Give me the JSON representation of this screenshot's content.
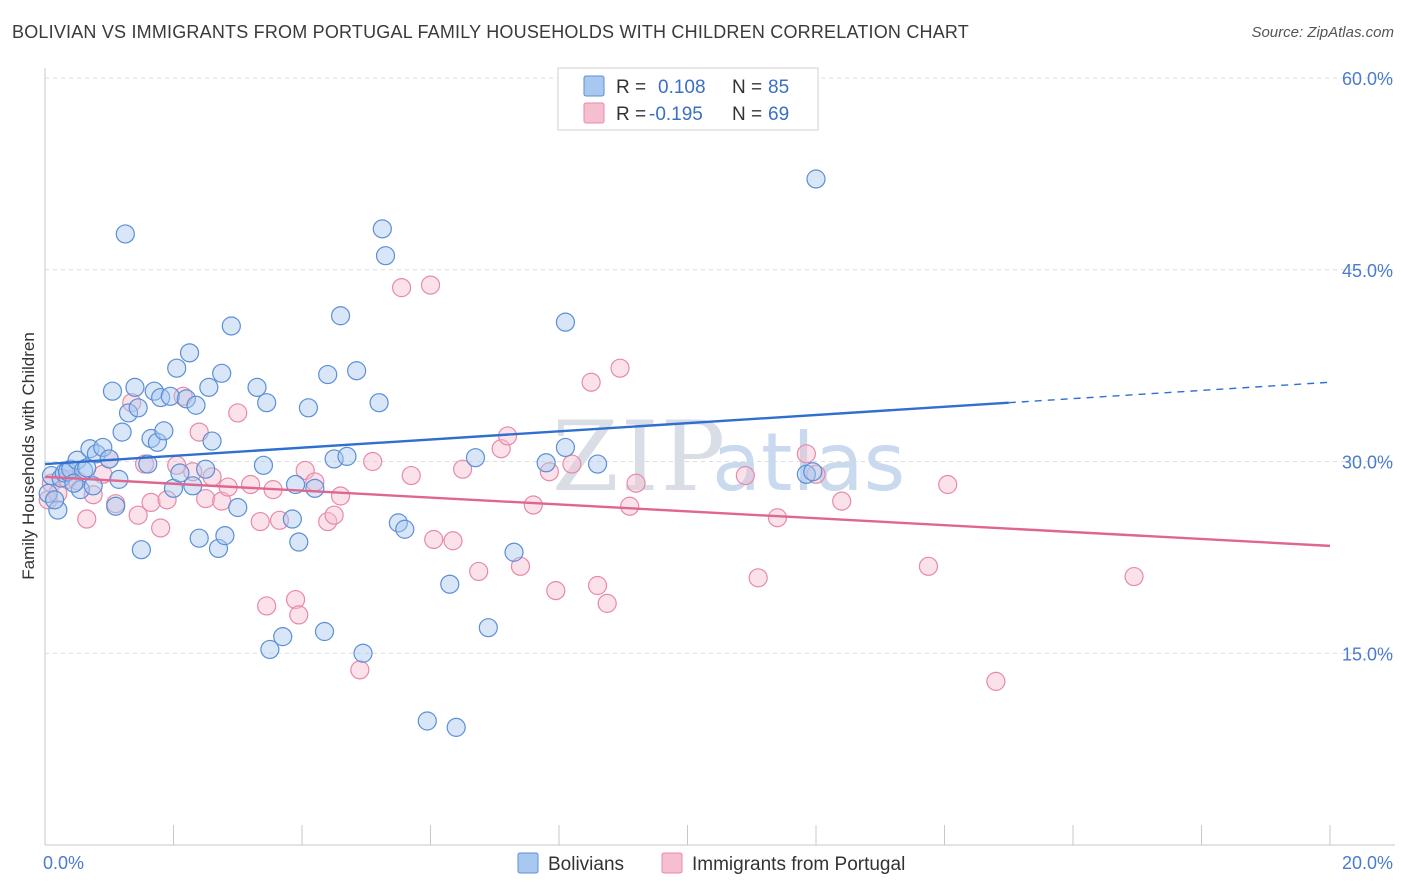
{
  "title": "BOLIVIAN VS IMMIGRANTS FROM PORTUGAL FAMILY HOUSEHOLDS WITH CHILDREN CORRELATION CHART",
  "source": "Source: ZipAtlas.com",
  "watermark": {
    "part1": "ZIP",
    "part2": "atlas"
  },
  "colors": {
    "blue_fill": "#a9c8f0",
    "blue_stroke": "#5b8fd6",
    "blue_line": "#2f6fd0",
    "pink_fill": "#f6bfd0",
    "pink_stroke": "#e68aa8",
    "pink_line": "#e0668f",
    "grid": "#dcdcdc",
    "tick_text": "#4a7bd0"
  },
  "legend": {
    "rows": [
      {
        "r_label": "R =",
        "r_value": "0.108",
        "n_label": "N =",
        "n_value": "85"
      },
      {
        "r_label": "R =",
        "r_value": "-0.195",
        "n_label": "N =",
        "n_value": "69"
      }
    ]
  },
  "bottom_legend": [
    "Bolivians",
    "Immigrants from Portugal"
  ],
  "chart_data": {
    "type": "scatter",
    "title": "BOLIVIAN VS IMMIGRANTS FROM PORTUGAL FAMILY HOUSEHOLDS WITH CHILDREN CORRELATION CHART",
    "xlabel": "",
    "ylabel": "Family Households with Children",
    "xlim": [
      0,
      20
    ],
    "ylim": [
      0,
      60
    ],
    "x_tick_labels": [
      "0.0%",
      "20.0%"
    ],
    "y_ticks": [
      15,
      30,
      45,
      60
    ],
    "y_tick_labels": [
      "15.0%",
      "30.0%",
      "45.0%",
      "60.0%"
    ],
    "grid": true,
    "legend_placement": "top-center",
    "series": [
      {
        "name": "Bolivians",
        "points": [
          [
            0.05,
            27.5
          ],
          [
            0.1,
            28.9
          ],
          [
            0.2,
            26.2
          ],
          [
            0.25,
            28.7
          ],
          [
            0.3,
            29.1
          ],
          [
            0.35,
            29.2
          ],
          [
            0.4,
            29.4
          ],
          [
            0.5,
            30.1
          ],
          [
            0.55,
            27.8
          ],
          [
            0.6,
            29.3
          ],
          [
            0.7,
            31.0
          ],
          [
            0.75,
            28.1
          ],
          [
            0.8,
            30.6
          ],
          [
            0.9,
            31.1
          ],
          [
            1.0,
            30.2
          ],
          [
            1.05,
            35.5
          ],
          [
            1.1,
            26.5
          ],
          [
            1.2,
            32.3
          ],
          [
            1.3,
            33.8
          ],
          [
            1.4,
            35.8
          ],
          [
            1.45,
            34.2
          ],
          [
            1.5,
            23.1
          ],
          [
            1.6,
            29.8
          ],
          [
            1.65,
            31.8
          ],
          [
            1.7,
            35.5
          ],
          [
            1.75,
            31.5
          ],
          [
            1.8,
            35.0
          ],
          [
            1.85,
            32.4
          ],
          [
            1.95,
            35.1
          ],
          [
            2.0,
            27.9
          ],
          [
            2.05,
            37.3
          ],
          [
            2.1,
            29.1
          ],
          [
            2.2,
            34.9
          ],
          [
            2.25,
            38.5
          ],
          [
            2.3,
            28.1
          ],
          [
            2.35,
            34.4
          ],
          [
            2.4,
            24.0
          ],
          [
            2.5,
            29.4
          ],
          [
            2.55,
            35.8
          ],
          [
            2.6,
            31.6
          ],
          [
            2.7,
            23.2
          ],
          [
            2.75,
            36.9
          ],
          [
            2.8,
            24.2
          ],
          [
            2.9,
            40.6
          ],
          [
            3.0,
            26.4
          ],
          [
            3.3,
            35.8
          ],
          [
            3.4,
            29.7
          ],
          [
            3.45,
            34.6
          ],
          [
            3.5,
            15.3
          ],
          [
            3.7,
            16.3
          ],
          [
            3.85,
            25.5
          ],
          [
            3.9,
            28.2
          ],
          [
            3.95,
            23.7
          ],
          [
            4.1,
            34.2
          ],
          [
            4.2,
            27.9
          ],
          [
            4.35,
            16.7
          ],
          [
            4.4,
            36.8
          ],
          [
            4.5,
            30.2
          ],
          [
            4.6,
            41.4
          ],
          [
            4.7,
            30.4
          ],
          [
            4.85,
            37.1
          ],
          [
            4.95,
            15.0
          ],
          [
            5.2,
            34.6
          ],
          [
            5.25,
            48.2
          ],
          [
            5.3,
            46.1
          ],
          [
            5.5,
            25.2
          ],
          [
            5.6,
            24.7
          ],
          [
            5.95,
            9.7
          ],
          [
            6.3,
            20.4
          ],
          [
            6.4,
            9.2
          ],
          [
            6.7,
            30.3
          ],
          [
            6.9,
            17.0
          ],
          [
            7.3,
            22.9
          ],
          [
            7.8,
            29.9
          ],
          [
            8.1,
            31.1
          ],
          [
            8.1,
            40.9
          ],
          [
            8.6,
            29.8
          ],
          [
            1.25,
            47.8
          ],
          [
            12.0,
            52.1
          ],
          [
            11.85,
            29.0
          ],
          [
            11.95,
            29.2
          ],
          [
            0.45,
            28.3
          ],
          [
            0.15,
            27.0
          ],
          [
            0.65,
            29.5
          ],
          [
            1.15,
            28.6
          ]
        ],
        "trend": {
          "x": [
            0,
            15
          ],
          "y": [
            29.8,
            34.6
          ],
          "dashed_to": [
            20,
            36.2
          ]
        }
      },
      {
        "name": "Immigrants from Portugal",
        "points": [
          [
            0.05,
            27.0
          ],
          [
            0.1,
            28.3
          ],
          [
            0.2,
            27.5
          ],
          [
            0.35,
            28.6
          ],
          [
            0.5,
            28.5
          ],
          [
            0.65,
            25.5
          ],
          [
            0.75,
            27.4
          ],
          [
            0.9,
            29.0
          ],
          [
            1.0,
            30.2
          ],
          [
            1.1,
            26.7
          ],
          [
            1.35,
            34.6
          ],
          [
            1.45,
            25.8
          ],
          [
            1.55,
            29.8
          ],
          [
            1.65,
            26.8
          ],
          [
            1.8,
            24.8
          ],
          [
            1.9,
            27.0
          ],
          [
            2.05,
            29.7
          ],
          [
            2.15,
            35.1
          ],
          [
            2.3,
            29.2
          ],
          [
            2.4,
            32.3
          ],
          [
            2.5,
            27.1
          ],
          [
            2.6,
            28.8
          ],
          [
            2.75,
            26.9
          ],
          [
            2.85,
            28.0
          ],
          [
            3.0,
            33.8
          ],
          [
            3.2,
            28.2
          ],
          [
            3.35,
            25.3
          ],
          [
            3.45,
            18.7
          ],
          [
            3.55,
            27.8
          ],
          [
            3.65,
            25.4
          ],
          [
            3.9,
            19.2
          ],
          [
            3.95,
            18.0
          ],
          [
            4.05,
            29.3
          ],
          [
            4.2,
            28.4
          ],
          [
            4.4,
            25.3
          ],
          [
            4.5,
            25.8
          ],
          [
            4.6,
            27.3
          ],
          [
            4.9,
            13.7
          ],
          [
            5.1,
            30.0
          ],
          [
            5.55,
            43.6
          ],
          [
            5.7,
            28.9
          ],
          [
            6.0,
            43.8
          ],
          [
            6.05,
            23.9
          ],
          [
            6.35,
            23.8
          ],
          [
            6.5,
            29.4
          ],
          [
            6.75,
            21.4
          ],
          [
            7.1,
            31.0
          ],
          [
            7.2,
            32.0
          ],
          [
            7.4,
            21.8
          ],
          [
            7.6,
            26.6
          ],
          [
            7.85,
            29.2
          ],
          [
            7.95,
            19.9
          ],
          [
            8.2,
            29.8
          ],
          [
            8.5,
            36.2
          ],
          [
            8.6,
            20.3
          ],
          [
            8.75,
            18.9
          ],
          [
            8.95,
            37.3
          ],
          [
            9.1,
            26.5
          ],
          [
            9.2,
            28.3
          ],
          [
            10.9,
            28.9
          ],
          [
            11.1,
            20.9
          ],
          [
            11.4,
            25.6
          ],
          [
            11.85,
            30.6
          ],
          [
            12.0,
            29.0
          ],
          [
            12.4,
            26.9
          ],
          [
            13.75,
            21.8
          ],
          [
            14.05,
            28.2
          ],
          [
            14.8,
            12.8
          ],
          [
            16.95,
            21.0
          ]
        ],
        "trend": {
          "x": [
            0,
            20
          ],
          "y": [
            28.8,
            23.4
          ]
        }
      }
    ]
  }
}
